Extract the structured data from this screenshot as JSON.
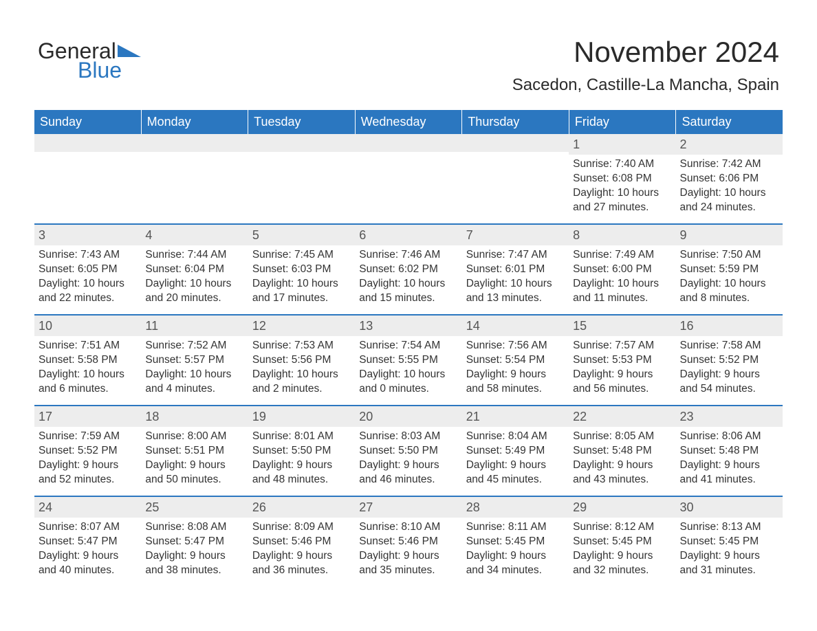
{
  "brand": {
    "text1": "General",
    "text2": "Blue",
    "color_dark": "#2a2a2a",
    "color_blue": "#2b77c0"
  },
  "title": "November 2024",
  "location": "Sacedon, Castille-La Mancha, Spain",
  "colors": {
    "header_bg": "#2b77c0",
    "header_text": "#ffffff",
    "band_bg": "#ededed",
    "text": "#333333",
    "border": "#2b77c0"
  },
  "day_labels": [
    "Sunday",
    "Monday",
    "Tuesday",
    "Wednesday",
    "Thursday",
    "Friday",
    "Saturday"
  ],
  "weeks": [
    [
      null,
      null,
      null,
      null,
      null,
      {
        "n": "1",
        "sunrise": "Sunrise: 7:40 AM",
        "sunset": "Sunset: 6:08 PM",
        "daylight": "Daylight: 10 hours and 27 minutes."
      },
      {
        "n": "2",
        "sunrise": "Sunrise: 7:42 AM",
        "sunset": "Sunset: 6:06 PM",
        "daylight": "Daylight: 10 hours and 24 minutes."
      }
    ],
    [
      {
        "n": "3",
        "sunrise": "Sunrise: 7:43 AM",
        "sunset": "Sunset: 6:05 PM",
        "daylight": "Daylight: 10 hours and 22 minutes."
      },
      {
        "n": "4",
        "sunrise": "Sunrise: 7:44 AM",
        "sunset": "Sunset: 6:04 PM",
        "daylight": "Daylight: 10 hours and 20 minutes."
      },
      {
        "n": "5",
        "sunrise": "Sunrise: 7:45 AM",
        "sunset": "Sunset: 6:03 PM",
        "daylight": "Daylight: 10 hours and 17 minutes."
      },
      {
        "n": "6",
        "sunrise": "Sunrise: 7:46 AM",
        "sunset": "Sunset: 6:02 PM",
        "daylight": "Daylight: 10 hours and 15 minutes."
      },
      {
        "n": "7",
        "sunrise": "Sunrise: 7:47 AM",
        "sunset": "Sunset: 6:01 PM",
        "daylight": "Daylight: 10 hours and 13 minutes."
      },
      {
        "n": "8",
        "sunrise": "Sunrise: 7:49 AM",
        "sunset": "Sunset: 6:00 PM",
        "daylight": "Daylight: 10 hours and 11 minutes."
      },
      {
        "n": "9",
        "sunrise": "Sunrise: 7:50 AM",
        "sunset": "Sunset: 5:59 PM",
        "daylight": "Daylight: 10 hours and 8 minutes."
      }
    ],
    [
      {
        "n": "10",
        "sunrise": "Sunrise: 7:51 AM",
        "sunset": "Sunset: 5:58 PM",
        "daylight": "Daylight: 10 hours and 6 minutes."
      },
      {
        "n": "11",
        "sunrise": "Sunrise: 7:52 AM",
        "sunset": "Sunset: 5:57 PM",
        "daylight": "Daylight: 10 hours and 4 minutes."
      },
      {
        "n": "12",
        "sunrise": "Sunrise: 7:53 AM",
        "sunset": "Sunset: 5:56 PM",
        "daylight": "Daylight: 10 hours and 2 minutes."
      },
      {
        "n": "13",
        "sunrise": "Sunrise: 7:54 AM",
        "sunset": "Sunset: 5:55 PM",
        "daylight": "Daylight: 10 hours and 0 minutes."
      },
      {
        "n": "14",
        "sunrise": "Sunrise: 7:56 AM",
        "sunset": "Sunset: 5:54 PM",
        "daylight": "Daylight: 9 hours and 58 minutes."
      },
      {
        "n": "15",
        "sunrise": "Sunrise: 7:57 AM",
        "sunset": "Sunset: 5:53 PM",
        "daylight": "Daylight: 9 hours and 56 minutes."
      },
      {
        "n": "16",
        "sunrise": "Sunrise: 7:58 AM",
        "sunset": "Sunset: 5:52 PM",
        "daylight": "Daylight: 9 hours and 54 minutes."
      }
    ],
    [
      {
        "n": "17",
        "sunrise": "Sunrise: 7:59 AM",
        "sunset": "Sunset: 5:52 PM",
        "daylight": "Daylight: 9 hours and 52 minutes."
      },
      {
        "n": "18",
        "sunrise": "Sunrise: 8:00 AM",
        "sunset": "Sunset: 5:51 PM",
        "daylight": "Daylight: 9 hours and 50 minutes."
      },
      {
        "n": "19",
        "sunrise": "Sunrise: 8:01 AM",
        "sunset": "Sunset: 5:50 PM",
        "daylight": "Daylight: 9 hours and 48 minutes."
      },
      {
        "n": "20",
        "sunrise": "Sunrise: 8:03 AM",
        "sunset": "Sunset: 5:50 PM",
        "daylight": "Daylight: 9 hours and 46 minutes."
      },
      {
        "n": "21",
        "sunrise": "Sunrise: 8:04 AM",
        "sunset": "Sunset: 5:49 PM",
        "daylight": "Daylight: 9 hours and 45 minutes."
      },
      {
        "n": "22",
        "sunrise": "Sunrise: 8:05 AM",
        "sunset": "Sunset: 5:48 PM",
        "daylight": "Daylight: 9 hours and 43 minutes."
      },
      {
        "n": "23",
        "sunrise": "Sunrise: 8:06 AM",
        "sunset": "Sunset: 5:48 PM",
        "daylight": "Daylight: 9 hours and 41 minutes."
      }
    ],
    [
      {
        "n": "24",
        "sunrise": "Sunrise: 8:07 AM",
        "sunset": "Sunset: 5:47 PM",
        "daylight": "Daylight: 9 hours and 40 minutes."
      },
      {
        "n": "25",
        "sunrise": "Sunrise: 8:08 AM",
        "sunset": "Sunset: 5:47 PM",
        "daylight": "Daylight: 9 hours and 38 minutes."
      },
      {
        "n": "26",
        "sunrise": "Sunrise: 8:09 AM",
        "sunset": "Sunset: 5:46 PM",
        "daylight": "Daylight: 9 hours and 36 minutes."
      },
      {
        "n": "27",
        "sunrise": "Sunrise: 8:10 AM",
        "sunset": "Sunset: 5:46 PM",
        "daylight": "Daylight: 9 hours and 35 minutes."
      },
      {
        "n": "28",
        "sunrise": "Sunrise: 8:11 AM",
        "sunset": "Sunset: 5:45 PM",
        "daylight": "Daylight: 9 hours and 34 minutes."
      },
      {
        "n": "29",
        "sunrise": "Sunrise: 8:12 AM",
        "sunset": "Sunset: 5:45 PM",
        "daylight": "Daylight: 9 hours and 32 minutes."
      },
      {
        "n": "30",
        "sunrise": "Sunrise: 8:13 AM",
        "sunset": "Sunset: 5:45 PM",
        "daylight": "Daylight: 9 hours and 31 minutes."
      }
    ]
  ]
}
